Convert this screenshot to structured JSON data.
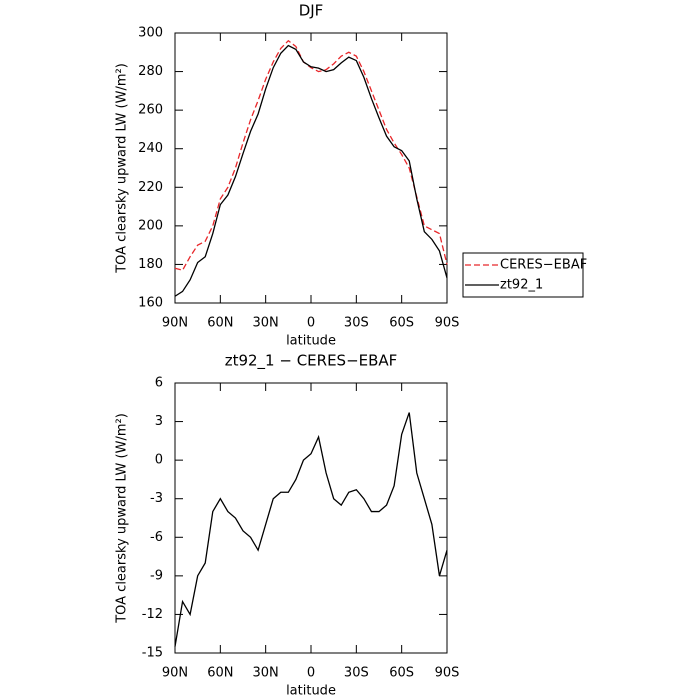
{
  "chart_data": [
    {
      "type": "line",
      "title": "DJF",
      "xlabel": "latitude",
      "ylabel": "TOA clearsky upward LW (W/m²)",
      "x": [
        90,
        85,
        80,
        75,
        70,
        65,
        60,
        55,
        50,
        45,
        40,
        35,
        30,
        25,
        20,
        15,
        10,
        5,
        0,
        -5,
        -10,
        -15,
        -20,
        -25,
        -30,
        -35,
        -40,
        -45,
        -50,
        -55,
        -60,
        -65,
        -70,
        -75,
        -80,
        -85,
        -90
      ],
      "series": [
        {
          "name": "CERES−EBAF",
          "color": "#e8272a",
          "linestyle": "dashed",
          "values": [
            178,
            177,
            184,
            190,
            192,
            200,
            214,
            220,
            230,
            243,
            255,
            265,
            276,
            285,
            292,
            296,
            293,
            285,
            282,
            280,
            281,
            284,
            288,
            290,
            288,
            280,
            270,
            260,
            250,
            243,
            237,
            230,
            215,
            200,
            198,
            196,
            180
          ]
        },
        {
          "name": "zt92_1",
          "color": "#000000",
          "linestyle": "solid",
          "values": [
            163.5,
            166,
            172,
            181,
            184,
            196,
            211,
            216,
            225.5,
            237.5,
            249,
            258,
            271,
            282,
            289.5,
            293.5,
            291.5,
            285,
            282.5,
            281.8,
            280,
            281,
            284.5,
            287.5,
            285.7,
            277,
            266,
            256,
            246.5,
            241,
            239,
            233.7,
            214,
            197,
            193,
            187,
            173
          ]
        }
      ],
      "xlim": [
        90,
        -90
      ],
      "xticks": [
        {
          "value": 90,
          "label": "90N"
        },
        {
          "value": 60,
          "label": "60N"
        },
        {
          "value": 30,
          "label": "30N"
        },
        0,
        {
          "value": -30,
          "label": "30S"
        },
        {
          "value": -60,
          "label": "60S"
        },
        {
          "value": -90,
          "label": "90S"
        }
      ],
      "ylim": [
        160,
        300
      ],
      "yticks": [
        160,
        180,
        200,
        220,
        240,
        260,
        280,
        300
      ],
      "legend": "right"
    },
    {
      "type": "line",
      "title": "zt92_1 − CERES−EBAF",
      "xlabel": "latitude",
      "ylabel": "TOA clearsky upward LW (W/m²)",
      "x": [
        90,
        85,
        80,
        75,
        70,
        65,
        60,
        55,
        50,
        45,
        40,
        35,
        30,
        25,
        20,
        15,
        10,
        5,
        0,
        -5,
        -10,
        -15,
        -20,
        -25,
        -30,
        -35,
        -40,
        -45,
        -50,
        -55,
        -60,
        -65,
        -70,
        -75,
        -80,
        -85,
        -90
      ],
      "values": [
        -14.5,
        -11,
        -12,
        -9,
        -8,
        -4,
        -3,
        -4,
        -4.5,
        -5.5,
        -6,
        -7,
        -5,
        -3,
        -2.5,
        -2.5,
        -1.5,
        0,
        0.5,
        1.8,
        -1,
        -3,
        -3.5,
        -2.5,
        -2.3,
        -3,
        -4,
        -4,
        -3.5,
        -2,
        2,
        3.7,
        -1,
        -3,
        -5,
        -9,
        -7
      ],
      "color": "#000000",
      "xlim": [
        90,
        -90
      ],
      "xticks": [
        {
          "value": 90,
          "label": "90N"
        },
        {
          "value": 60,
          "label": "60N"
        },
        {
          "value": 30,
          "label": "30N"
        },
        0,
        {
          "value": -30,
          "label": "30S"
        },
        {
          "value": -60,
          "label": "60S"
        },
        {
          "value": -90,
          "label": "90S"
        }
      ],
      "ylim": [
        -15,
        6
      ],
      "yticks": [
        -15,
        -12,
        -9,
        -6,
        -3,
        0,
        3,
        6
      ]
    }
  ]
}
